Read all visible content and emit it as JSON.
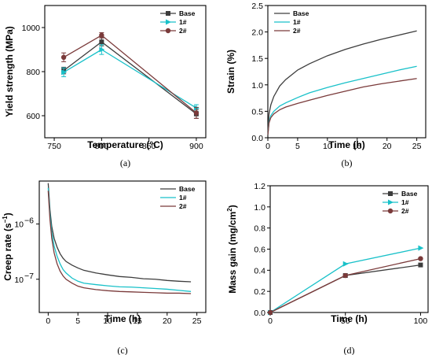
{
  "colors": {
    "Base": "#3d3d3d",
    "1#": "#19c1c9",
    "2#": "#7a3a3a"
  },
  "chart_data": [
    {
      "type": "line",
      "caption": "(a)",
      "xlabel": "Temperature (°C)",
      "ylabel": "Yield strength (MPa)",
      "xlim": [
        740,
        910
      ],
      "ylim": [
        500,
        1100
      ],
      "xticks": [
        750,
        800,
        850,
        900
      ],
      "yticks": [
        600,
        800,
        1000
      ],
      "legend": "top-right",
      "x": [
        760,
        800,
        900
      ],
      "series": [
        {
          "name": "Base",
          "values": [
            805,
            935,
            608
          ],
          "errors": [
            15,
            18,
            20
          ],
          "marker": "square"
        },
        {
          "name": "1#",
          "values": [
            797,
            900,
            635
          ],
          "errors": [
            20,
            22,
            15
          ],
          "marker": "triangle-right"
        },
        {
          "name": "2#",
          "values": [
            865,
            965,
            613
          ],
          "errors": [
            20,
            12,
            25
          ],
          "marker": "circle"
        }
      ]
    },
    {
      "type": "line",
      "caption": "(b)",
      "xlabel": "Time (h)",
      "ylabel": "Strain (%)",
      "xlim": [
        0,
        26.5
      ],
      "ylim": [
        0,
        2.5
      ],
      "xticks": [
        0,
        5,
        10,
        15,
        20,
        25
      ],
      "yticks": [
        0.0,
        0.5,
        1.0,
        1.5,
        2.0,
        2.5
      ],
      "ytick_labels": [
        "0.0",
        "0.5",
        "1.0",
        "1.5",
        "2.0",
        "2.5"
      ],
      "legend": "top-left",
      "x": [
        0,
        0.2,
        0.5,
        1,
        2,
        3,
        5,
        7,
        10,
        13,
        16,
        19,
        22,
        25
      ],
      "series": [
        {
          "name": "Base",
          "values": [
            0.1,
            0.45,
            0.62,
            0.78,
            0.98,
            1.1,
            1.28,
            1.4,
            1.55,
            1.67,
            1.77,
            1.86,
            1.94,
            2.02
          ]
        },
        {
          "name": "1#",
          "values": [
            0.05,
            0.3,
            0.42,
            0.5,
            0.6,
            0.66,
            0.76,
            0.85,
            0.95,
            1.04,
            1.12,
            1.2,
            1.28,
            1.35
          ]
        },
        {
          "name": "2#",
          "values": [
            0.05,
            0.28,
            0.38,
            0.45,
            0.53,
            0.58,
            0.65,
            0.71,
            0.8,
            0.88,
            0.96,
            1.02,
            1.07,
            1.12
          ]
        }
      ]
    },
    {
      "type": "line",
      "caption": "(c)",
      "xlabel": "Time (h)",
      "ylabel": "Creep rate (s",
      "ylabel_sup": "−1",
      "ylabel_end": ")",
      "xlim": [
        -1.5,
        26.5
      ],
      "ylog": true,
      "ylim": [
        2.5e-08,
        6e-06
      ],
      "xticks": [
        0,
        5,
        10,
        15,
        20,
        25
      ],
      "yticks": [
        1e-07,
        1e-06
      ],
      "ytick_labels": [
        {
          "base": "10",
          "exp": "−7"
        },
        {
          "base": "10",
          "exp": "−6"
        }
      ],
      "legend": "top-right",
      "x": [
        0,
        0.3,
        0.6,
        1,
        1.5,
        2,
        2.5,
        3,
        4,
        5,
        6,
        8,
        10,
        12,
        14,
        16,
        18,
        20,
        22,
        24
      ],
      "series": [
        {
          "name": "Base",
          "values": [
            5.5e-06,
            1.8e-06,
            9e-07,
            5.5e-07,
            3.8e-07,
            2.9e-07,
            2.4e-07,
            2.1e-07,
            1.8e-07,
            1.6e-07,
            1.45e-07,
            1.3e-07,
            1.2e-07,
            1.12e-07,
            1.08e-07,
            1.02e-07,
            1e-07,
            9.5e-08,
            9.2e-08,
            9e-08
          ]
        },
        {
          "name": "1#",
          "values": [
            4.5e-06,
            1.5e-06,
            7e-07,
            4e-07,
            2.6e-07,
            1.9e-07,
            1.5e-07,
            1.3e-07,
            1.05e-07,
            9.2e-08,
            8.5e-08,
            8e-08,
            7.6e-08,
            7.3e-08,
            7.2e-08,
            7e-08,
            6.8e-08,
            6.6e-08,
            6.3e-08,
            6e-08
          ]
        },
        {
          "name": "2#",
          "values": [
            4e-06,
            1.2e-06,
            5.5e-07,
            3e-07,
            1.9e-07,
            1.4e-07,
            1.15e-07,
            1e-07,
            8.5e-08,
            7.5e-08,
            7e-08,
            6.5e-08,
            6.2e-08,
            6e-08,
            5.9e-08,
            5.8e-08,
            5.7e-08,
            5.6e-08,
            5.6e-08,
            5.5e-08
          ]
        }
      ]
    },
    {
      "type": "line",
      "caption": "(d)",
      "xlabel": "Time (h)",
      "ylabel": "Mass gain (mg/cm",
      "ylabel_sup": "2",
      "ylabel_end": ")",
      "xlim": [
        0,
        105
      ],
      "ylim": [
        0,
        1.2
      ],
      "xticks": [
        0,
        50,
        100
      ],
      "yticks": [
        0.0,
        0.2,
        0.4,
        0.6,
        0.8,
        1.0,
        1.2
      ],
      "ytick_labels": [
        "0.0",
        "0.2",
        "0.4",
        "0.6",
        "0.8",
        "1.0",
        "1.2"
      ],
      "legend": "top-right",
      "x": [
        0,
        50,
        100
      ],
      "series": [
        {
          "name": "Base",
          "values": [
            0,
            0.35,
            0.45
          ],
          "marker": "square"
        },
        {
          "name": "1#",
          "values": [
            0,
            0.46,
            0.61
          ],
          "marker": "triangle-right"
        },
        {
          "name": "2#",
          "values": [
            0,
            0.35,
            0.51
          ],
          "marker": "circle"
        }
      ]
    }
  ]
}
